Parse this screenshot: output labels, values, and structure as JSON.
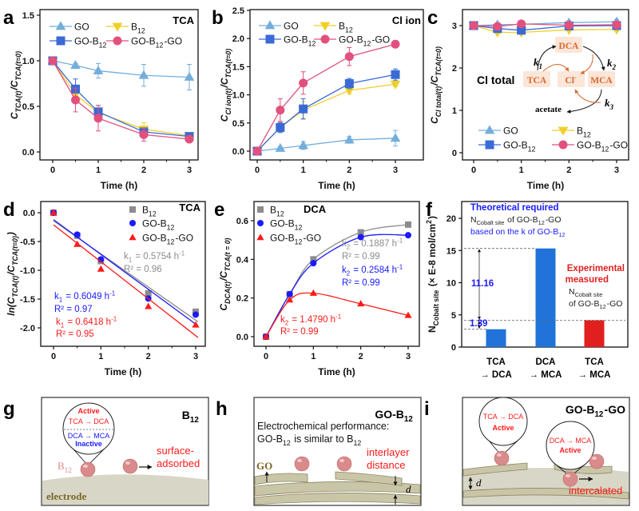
{
  "chart_data": [
    {
      "panel": "a",
      "type": "line",
      "title": "TCA",
      "xlabel": "Time (h)",
      "ylabel": "C_{TCA(t)}/C_{TCA(t=0)}",
      "x": [
        0,
        0.5,
        1,
        2,
        3
      ],
      "xticks": [
        0,
        1,
        2,
        3
      ],
      "yticks": [
        0,
        0.5,
        1,
        1.5
      ],
      "ytick_labels": [
        "0.0",
        "0.5",
        "1.0",
        "1.5"
      ],
      "grid": false,
      "legend": "top",
      "series": [
        {
          "name": "GO",
          "color": "#74aedb",
          "marker": "triangle-up",
          "values": [
            1.0,
            0.95,
            0.89,
            0.84,
            0.82
          ],
          "errors": [
            0.03,
            0.02,
            0.08,
            0.12,
            0.14
          ]
        },
        {
          "name": "B_{12}",
          "color": "#f0d028",
          "marker": "triangle-down",
          "values": [
            1.0,
            0.63,
            0.43,
            0.25,
            0.18
          ],
          "errors": [
            0.02,
            0.06,
            0.08,
            0.07,
            0.02
          ]
        },
        {
          "name": "GO-B_{12}",
          "color": "#3a6ad6",
          "marker": "square",
          "values": [
            1.0,
            0.69,
            0.44,
            0.22,
            0.17
          ],
          "errors": [
            0.02,
            0.11,
            0.07,
            0.04,
            0.02
          ]
        },
        {
          "name": "GO-B_{12}-GO",
          "color": "#e2507e",
          "marker": "circle",
          "values": [
            1.0,
            0.57,
            0.37,
            0.19,
            0.14
          ],
          "errors": [
            0.02,
            0.13,
            0.14,
            0.07,
            0.02
          ]
        }
      ]
    },
    {
      "panel": "b",
      "type": "line",
      "title": "Cl ion",
      "xlabel": "Time (h)",
      "ylabel": "C_{Cl ion(t)}/C_{TCA(t=0)}",
      "x": [
        0,
        0.5,
        1,
        2,
        3
      ],
      "xticks": [
        0,
        1,
        2,
        3
      ],
      "yticks": [
        0,
        0.5,
        1,
        1.5,
        2,
        2.5
      ],
      "ytick_labels": [
        "0.0",
        "0.5",
        "1.0",
        "1.5",
        "2.0",
        "2.5"
      ],
      "grid": false,
      "legend": "top",
      "series": [
        {
          "name": "GO",
          "color": "#74aedb",
          "marker": "triangle-up",
          "values": [
            0,
            0.05,
            0.1,
            0.2,
            0.23
          ],
          "errors": [
            0.02,
            0.03,
            0.07,
            0.06,
            0.14
          ]
        },
        {
          "name": "B_{12}",
          "color": "#f0d028",
          "marker": "triangle-down",
          "values": [
            0,
            0.42,
            0.73,
            1.08,
            1.19
          ],
          "errors": [
            0.02,
            0.08,
            0.15,
            0.06,
            0.04
          ]
        },
        {
          "name": "GO-B_{12}",
          "color": "#3a6ad6",
          "marker": "square",
          "values": [
            0,
            0.42,
            0.75,
            1.2,
            1.36
          ],
          "errors": [
            0.02,
            0.09,
            0.18,
            0.09,
            0.1
          ]
        },
        {
          "name": "GO-B_{12}-GO",
          "color": "#e2507e",
          "marker": "circle",
          "values": [
            0,
            0.73,
            1.21,
            1.68,
            1.9
          ],
          "errors": [
            0.02,
            0.2,
            0.2,
            0.16,
            0.03
          ]
        }
      ]
    },
    {
      "panel": "c",
      "type": "line",
      "title": "Cl total",
      "xlabel": "Time (h)",
      "ylabel": "C_{Cl total(t)}/C_{TCA(t=0)}",
      "x": [
        0,
        0.5,
        1,
        2,
        3
      ],
      "xticks": [
        0,
        1,
        2,
        3
      ],
      "yticks": [
        0,
        1,
        2,
        3
      ],
      "ytick_labels": [
        "0",
        "1",
        "2",
        "3"
      ],
      "grid": false,
      "legend": "bottom",
      "series": [
        {
          "name": "GO",
          "color": "#74aedb",
          "marker": "triangle-up",
          "values": [
            3.0,
            3.02,
            3.03,
            3.07,
            3.09
          ],
          "errors": [
            0.02,
            0.03,
            0.03,
            0.04,
            0.05
          ]
        },
        {
          "name": "B_{12}",
          "color": "#f0d028",
          "marker": "triangle-down",
          "values": [
            3.0,
            2.84,
            2.84,
            2.9,
            2.91
          ],
          "errors": [
            0.02,
            0.04,
            0.04,
            0.04,
            0.04
          ]
        },
        {
          "name": "GO-B_{12}",
          "color": "#3a6ad6",
          "marker": "square",
          "values": [
            3.0,
            2.93,
            2.89,
            2.99,
            3.0
          ],
          "errors": [
            0.02,
            0.04,
            0.04,
            0.04,
            0.04
          ]
        },
        {
          "name": "GO-B_{12}-GO",
          "color": "#e2507e",
          "marker": "circle",
          "values": [
            3.0,
            2.98,
            3.04,
            3.01,
            3.02
          ],
          "errors": [
            0.02,
            0.03,
            0.03,
            0.03,
            0.03
          ]
        }
      ],
      "inset": {
        "TCA": "TCA",
        "DCA": "DCA",
        "MCA": "MCA",
        "Cl": "Cl^{-}",
        "acetate": "acetate",
        "k1": "k_{1}",
        "k2": "k_{2}",
        "k3": "k_{3}",
        "node_color": "#d9662a"
      }
    },
    {
      "panel": "d",
      "type": "scatter",
      "title": "TCA",
      "xlabel": "Time (h)",
      "ylabel": "ln(C_{TCA(t)}/C_{TCA(t=0)})",
      "x": [
        0,
        0.5,
        1,
        2,
        3
      ],
      "xticks": [
        0,
        1,
        2,
        3
      ],
      "yticks": [
        0,
        -0.5,
        -1,
        -1.5,
        -2
      ],
      "ytick_labels": [
        "0.0",
        "-0.5",
        "-1.0",
        "-1.5",
        "-2.0"
      ],
      "grid": false,
      "legend": "top-right",
      "series": [
        {
          "name": "B_{12}",
          "color": "#8c8c8c",
          "marker": "square",
          "values": [
            0,
            -0.4,
            -0.84,
            -1.4,
            -1.72
          ],
          "fit": {
            "slope": -0.5754,
            "intercept": -0.14
          }
        },
        {
          "name": "GO-B_{12}",
          "color": "#1a1aff",
          "marker": "circle",
          "values": [
            0,
            -0.38,
            -0.81,
            -1.49,
            -1.77
          ],
          "fit": {
            "slope": -0.6049,
            "intercept": -0.12
          }
        },
        {
          "name": "GO-B_{12}-GO",
          "color": "#ff1a1a",
          "marker": "triangle-up",
          "values": [
            0,
            -0.55,
            -0.98,
            -1.63,
            -1.95
          ],
          "fit": {
            "slope": -0.6418,
            "intercept": -0.21
          }
        }
      ],
      "annotations": [
        {
          "text": "k_{1} =  0.5754 h^{-1}",
          "color": "#8c8c8c"
        },
        {
          "text": "R² = 0.96",
          "color": "#8c8c8c"
        },
        {
          "text": "k_{1} =  0.6049 h^{-1}",
          "color": "#1a1aff"
        },
        {
          "text": "R² = 0.97",
          "color": "#1a1aff"
        },
        {
          "text": "k_{1} = 0.6418 h^{-1}",
          "color": "#ff1a1a"
        },
        {
          "text": "R² = 0.95",
          "color": "#ff1a1a"
        }
      ]
    },
    {
      "panel": "e",
      "type": "scatter",
      "title": "DCA",
      "xlabel": "Time (h)",
      "ylabel": "C_{DCA(t)}/C_{TCA(t = 0)}",
      "x": [
        0,
        0.5,
        1,
        2,
        3
      ],
      "xticks": [
        0,
        1,
        2,
        3
      ],
      "yticks": [
        0,
        0.2,
        0.4,
        0.6
      ],
      "ytick_labels": [
        "0.0",
        "0.2",
        "0.4",
        "0.6"
      ],
      "grid": false,
      "legend": "top-left",
      "series": [
        {
          "name": "B_{12}",
          "color": "#8c8c8c",
          "marker": "square",
          "values": [
            0,
            0.22,
            0.4,
            0.54,
            0.58
          ]
        },
        {
          "name": "GO-B_{12}",
          "color": "#1a1aff",
          "marker": "circle",
          "values": [
            0,
            0.22,
            0.38,
            0.515,
            0.525
          ]
        },
        {
          "name": "GO-B_{12}-GO",
          "color": "#ff1a1a",
          "marker": "triangle-up",
          "values": [
            0,
            0.19,
            0.225,
            0.17,
            0.11
          ]
        }
      ],
      "annotations": [
        {
          "text": "k_{2} =  0.1887 h^{-1}",
          "color": "#8c8c8c"
        },
        {
          "text": "R² = 0.99",
          "color": "#8c8c8c"
        },
        {
          "text": "k_{2} =  0.2584 h^{-1}",
          "color": "#1a1aff"
        },
        {
          "text": "R² = 0.99",
          "color": "#1a1aff"
        },
        {
          "text": "k_{2} = 1.4790 h^{-1}",
          "color": "#ff1a1a"
        },
        {
          "text": "R² = 0.99",
          "color": "#ff1a1a"
        }
      ]
    },
    {
      "panel": "f",
      "type": "bar",
      "ylabel": "N_{Cobalt site} (× E-8 mol/cm^{2})",
      "categories": [
        [
          "TCA",
          "→ DCA"
        ],
        [
          "DCA",
          "→ MCA"
        ],
        [
          "TCA",
          "→ MCA"
        ]
      ],
      "values": [
        2.77,
        15.32,
        4.16
      ],
      "colors": [
        "#1f73d9",
        "#1f73d9",
        "#e21f1f"
      ],
      "yticks": [
        0,
        5,
        10,
        15,
        20
      ],
      "ylim": [
        0,
        22.5
      ],
      "differences": [
        {
          "label": "11.16",
          "from": 4.16,
          "to": 15.32
        },
        {
          "label": "1.39",
          "from": 2.77,
          "to": 4.16
        }
      ],
      "annotations": {
        "theory_title": "Theoretical required",
        "theory_line2": "N_{Cobalt site} of GO-B_{12}-GO",
        "theory_line3": "based on the k of GO-B_{12}",
        "exp_title1": "Experimental",
        "exp_title2": "measured",
        "exp_line3": "N_{Cobalt site}",
        "exp_line4": "of GO-B_{12}-GO"
      }
    }
  ],
  "schematics": {
    "g": {
      "title": "B_{12}",
      "active": "Active",
      "reaction1": "TCA → DCA",
      "reaction2": "DCA → MCA",
      "inactive": "Inactive",
      "b12_label": "B_{12}",
      "note1": "surface-",
      "note2": "adsorbed",
      "electrode": "electrode"
    },
    "h": {
      "title": "GO-B_{12}",
      "line1": "Electrochemical performance:",
      "line2": "GO-B_{12} is similar to B_{12}",
      "go_label": "GO",
      "note1": "interlayer",
      "note2": "distance",
      "d": "d"
    },
    "i": {
      "title": "GO-B_{12}-GO",
      "reaction1": "TCA → DCA",
      "active1": "Active",
      "reaction2": "DCA → MCA",
      "active2": "Active",
      "note": "intercalated",
      "d": "d"
    }
  },
  "panel_letters": [
    "a",
    "b",
    "c",
    "d",
    "e",
    "f",
    "g",
    "h",
    "i"
  ]
}
